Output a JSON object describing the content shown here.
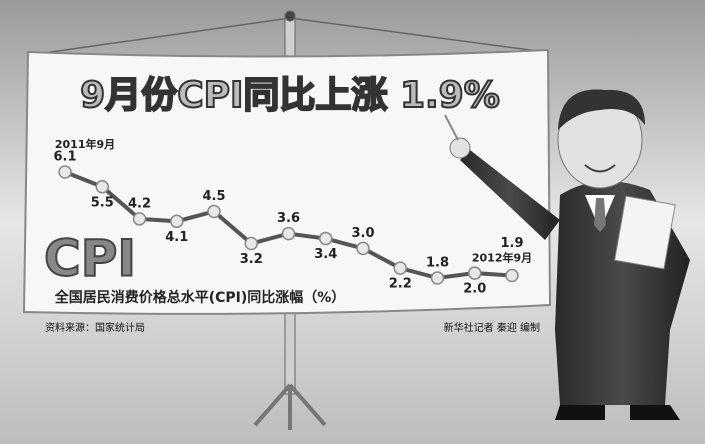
{
  "chart_data": {
    "type": "line",
    "title": "9月份CPI同比上涨 1.9%",
    "subtitle": "全国居民消费价格总水平(CPI)同比涨幅（%）",
    "logo": "CPI",
    "source": "资料来源：国家统计局",
    "credit": "新华社记者 秦迎 编制",
    "categories": [
      "2011年9月",
      null,
      null,
      null,
      null,
      null,
      null,
      null,
      null,
      null,
      null,
      null,
      "2012年9月"
    ],
    "values": [
      6.1,
      5.5,
      4.2,
      4.1,
      4.5,
      3.2,
      3.6,
      3.4,
      3.0,
      2.2,
      1.8,
      2.0,
      1.9
    ],
    "value_labels": [
      "6.1",
      "5.5",
      "4.2",
      "4.1",
      "4.5",
      "3.2",
      "3.6",
      "3.4",
      "3.0",
      "2.2",
      "1.8",
      "2.0",
      "1.9"
    ],
    "color": "#555555"
  }
}
